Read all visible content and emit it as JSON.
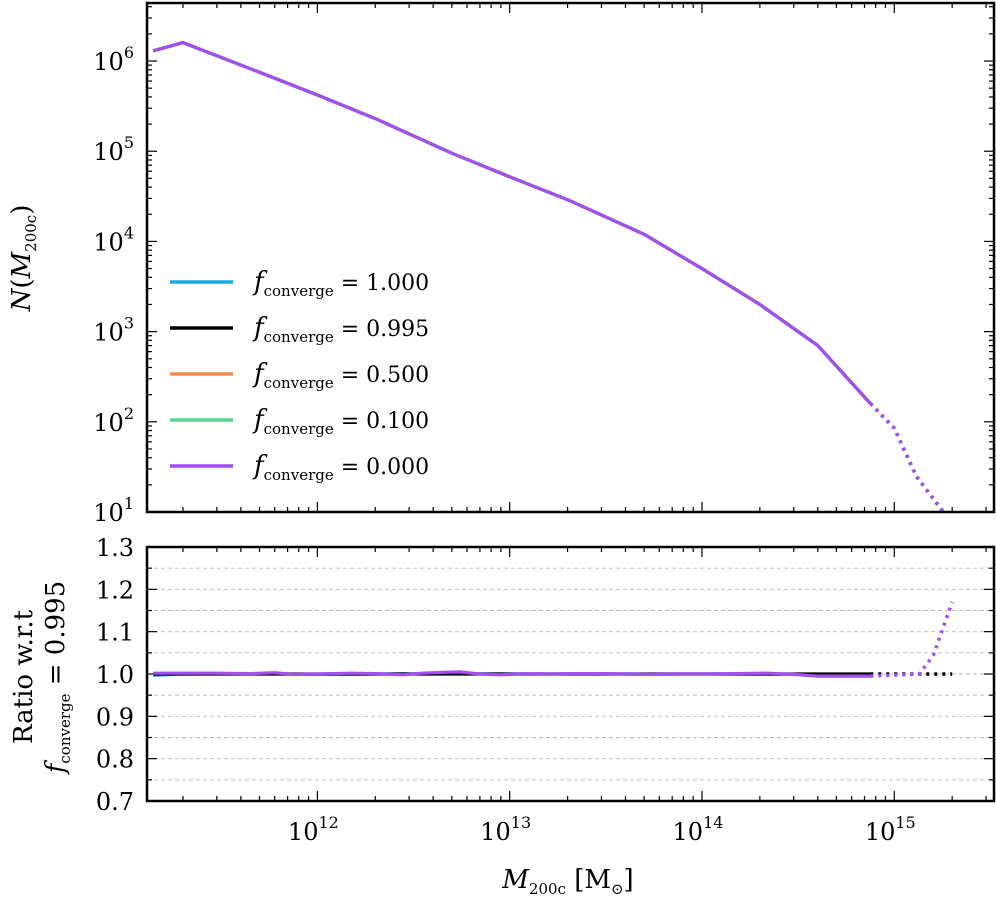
{
  "chart_data": [
    {
      "type": "line",
      "ylabel": "N(M200c)",
      "yscale": "log",
      "xscale": "log",
      "xlim": [
        130000000000.0,
        3300000000000000.0
      ],
      "ylim": [
        10,
        4400000.0
      ],
      "y_ticks": [
        10,
        100,
        1000,
        10000,
        100000,
        1000000
      ],
      "y_tick_labels": [
        {
          "base": "10",
          "exp": "1"
        },
        {
          "base": "10",
          "exp": "2"
        },
        {
          "base": "10",
          "exp": "3"
        },
        {
          "base": "10",
          "exp": "4"
        },
        {
          "base": "10",
          "exp": "5"
        },
        {
          "base": "10",
          "exp": "6"
        }
      ],
      "legend_position": "lower-left",
      "grid": false,
      "series": [
        {
          "name": "f_converge = 1.000",
          "label_value": "1.000",
          "color": "#1fa8e6"
        },
        {
          "name": "f_converge = 0.995",
          "label_value": "0.995",
          "color": "#000000"
        },
        {
          "name": "f_converge = 0.500",
          "label_value": "0.500",
          "color": "#f58c4a"
        },
        {
          "name": "f_converge = 0.100",
          "label_value": "0.100",
          "color": "#56d88c"
        },
        {
          "name": "f_converge = 0.000",
          "label_value": "0.000",
          "color": "#a34ef0"
        }
      ],
      "solid_x": [
        140000000000.0,
        200000000000.0,
        500000000000.0,
        1000000000000.0,
        2000000000000.0,
        5000000000000.0,
        10000000000000.0,
        20000000000000.0,
        50000000000000.0,
        100000000000000.0,
        200000000000000.0,
        400000000000000.0,
        750000000000000.0
      ],
      "solid_y": [
        1300000.0,
        1600000.0,
        750000.0,
        420000.0,
        230000.0,
        95000.0,
        52000.0,
        29000.0,
        12000.0,
        5000.0,
        2000.0,
        700.0,
        160.0
      ],
      "dotted_x": [
        750000000000000.0,
        1000000000000000.0,
        1300000000000000.0,
        1800000000000000.0
      ],
      "dotted_y": [
        160.0,
        85.0,
        25.0,
        10.0
      ],
      "legend_label_prefix": {
        "f": "f",
        "sub": "converge",
        "eq": " = "
      }
    },
    {
      "type": "line",
      "xlabel": "M200c [M⊙]",
      "xlabel_parts": {
        "main": "M",
        "sub": "200c",
        "unit": " [M",
        "unit_sub": "⊙",
        "close": "]"
      },
      "ylabel_line1": "Ratio w.r.t",
      "ylabel_line2": {
        "f": "f",
        "sub": "converge",
        "eq": " = 0.995"
      },
      "xscale": "log",
      "xlim": [
        130000000000.0,
        3300000000000000.0
      ],
      "ylim": [
        0.7,
        1.3
      ],
      "y_ticks": [
        0.7,
        0.8,
        0.9,
        1.0,
        1.1,
        1.2,
        1.3
      ],
      "y_tick_labels": [
        "0.7",
        "0.8",
        "0.9",
        "1.0",
        "1.1",
        "1.2",
        "1.3"
      ],
      "x_ticks": [
        1000000000000.0,
        10000000000000.0,
        100000000000000.0,
        1000000000000000.0
      ],
      "x_tick_labels": [
        {
          "base": "10",
          "exp": "12"
        },
        {
          "base": "10",
          "exp": "13"
        },
        {
          "base": "10",
          "exp": "14"
        },
        {
          "base": "10",
          "exp": "15"
        }
      ],
      "grid": true,
      "grid_style": "dashed horizontal",
      "series": [
        {
          "name": "f_converge = 1.000",
          "color": "#1fa8e6",
          "x": [
            140000000000.0,
            200000000000.0,
            500000000000.0,
            1000000000000.0,
            2000000000000.0,
            5000000000000.0,
            10000000000000.0,
            20000000000000.0,
            50000000000000.0,
            100000000000000.0,
            200000000000000.0,
            400000000000000.0,
            750000000000000.0
          ],
          "y": [
            0.997,
            1.0,
            1.001,
            0.999,
            1.0,
            1.001,
            1.0,
            1.0,
            1.0,
            1.0,
            1.0,
            0.999,
            0.998
          ]
        },
        {
          "name": "f_converge = 0.995",
          "color": "#000000",
          "x": [
            140000000000.0,
            750000000000000.0
          ],
          "y": [
            1.0,
            1.0
          ],
          "dotted_x": [
            750000000000000.0,
            2000000000000000.0
          ],
          "dotted_y": [
            1.0,
            1.0
          ]
        },
        {
          "name": "f_converge = 0.000",
          "color": "#a34ef0",
          "x": [
            140000000000.0,
            200000000000.0,
            300000000000.0,
            450000000000.0,
            600000000000.0,
            750000000000.0,
            1000000000000.0,
            1500000000000.0,
            2000000000000.0,
            2800000000000.0,
            3500000000000.0,
            4500000000000.0,
            5500000000000.0,
            7000000000000.0,
            9000000000000.0,
            12000000000000.0,
            16000000000000.0,
            22000000000000.0,
            30000000000000.0,
            40000000000000.0,
            55000000000000.0,
            75000000000000.0,
            100000000000000.0,
            150000000000000.0,
            220000000000000.0,
            300000000000000.0,
            400000000000000.0,
            750000000000000.0
          ],
          "y": [
            1.002,
            1.002,
            1.002,
            1.001,
            1.003,
            0.999,
            1.0,
            1.002,
            1.001,
            0.998,
            1.002,
            1.004,
            1.005,
            1.0,
            0.998,
            1.001,
            1.0,
            1.001,
            1.001,
            1.0,
            0.999,
            1.0,
            1.0,
            1.001,
            1.002,
            0.999,
            0.995,
            0.995
          ],
          "dotted_x": [
            750000000000000.0,
            1350000000000000.0,
            1600000000000000.0,
            2000000000000000.0
          ],
          "dotted_y": [
            0.995,
            1.0,
            1.045,
            1.17
          ]
        }
      ]
    }
  ]
}
